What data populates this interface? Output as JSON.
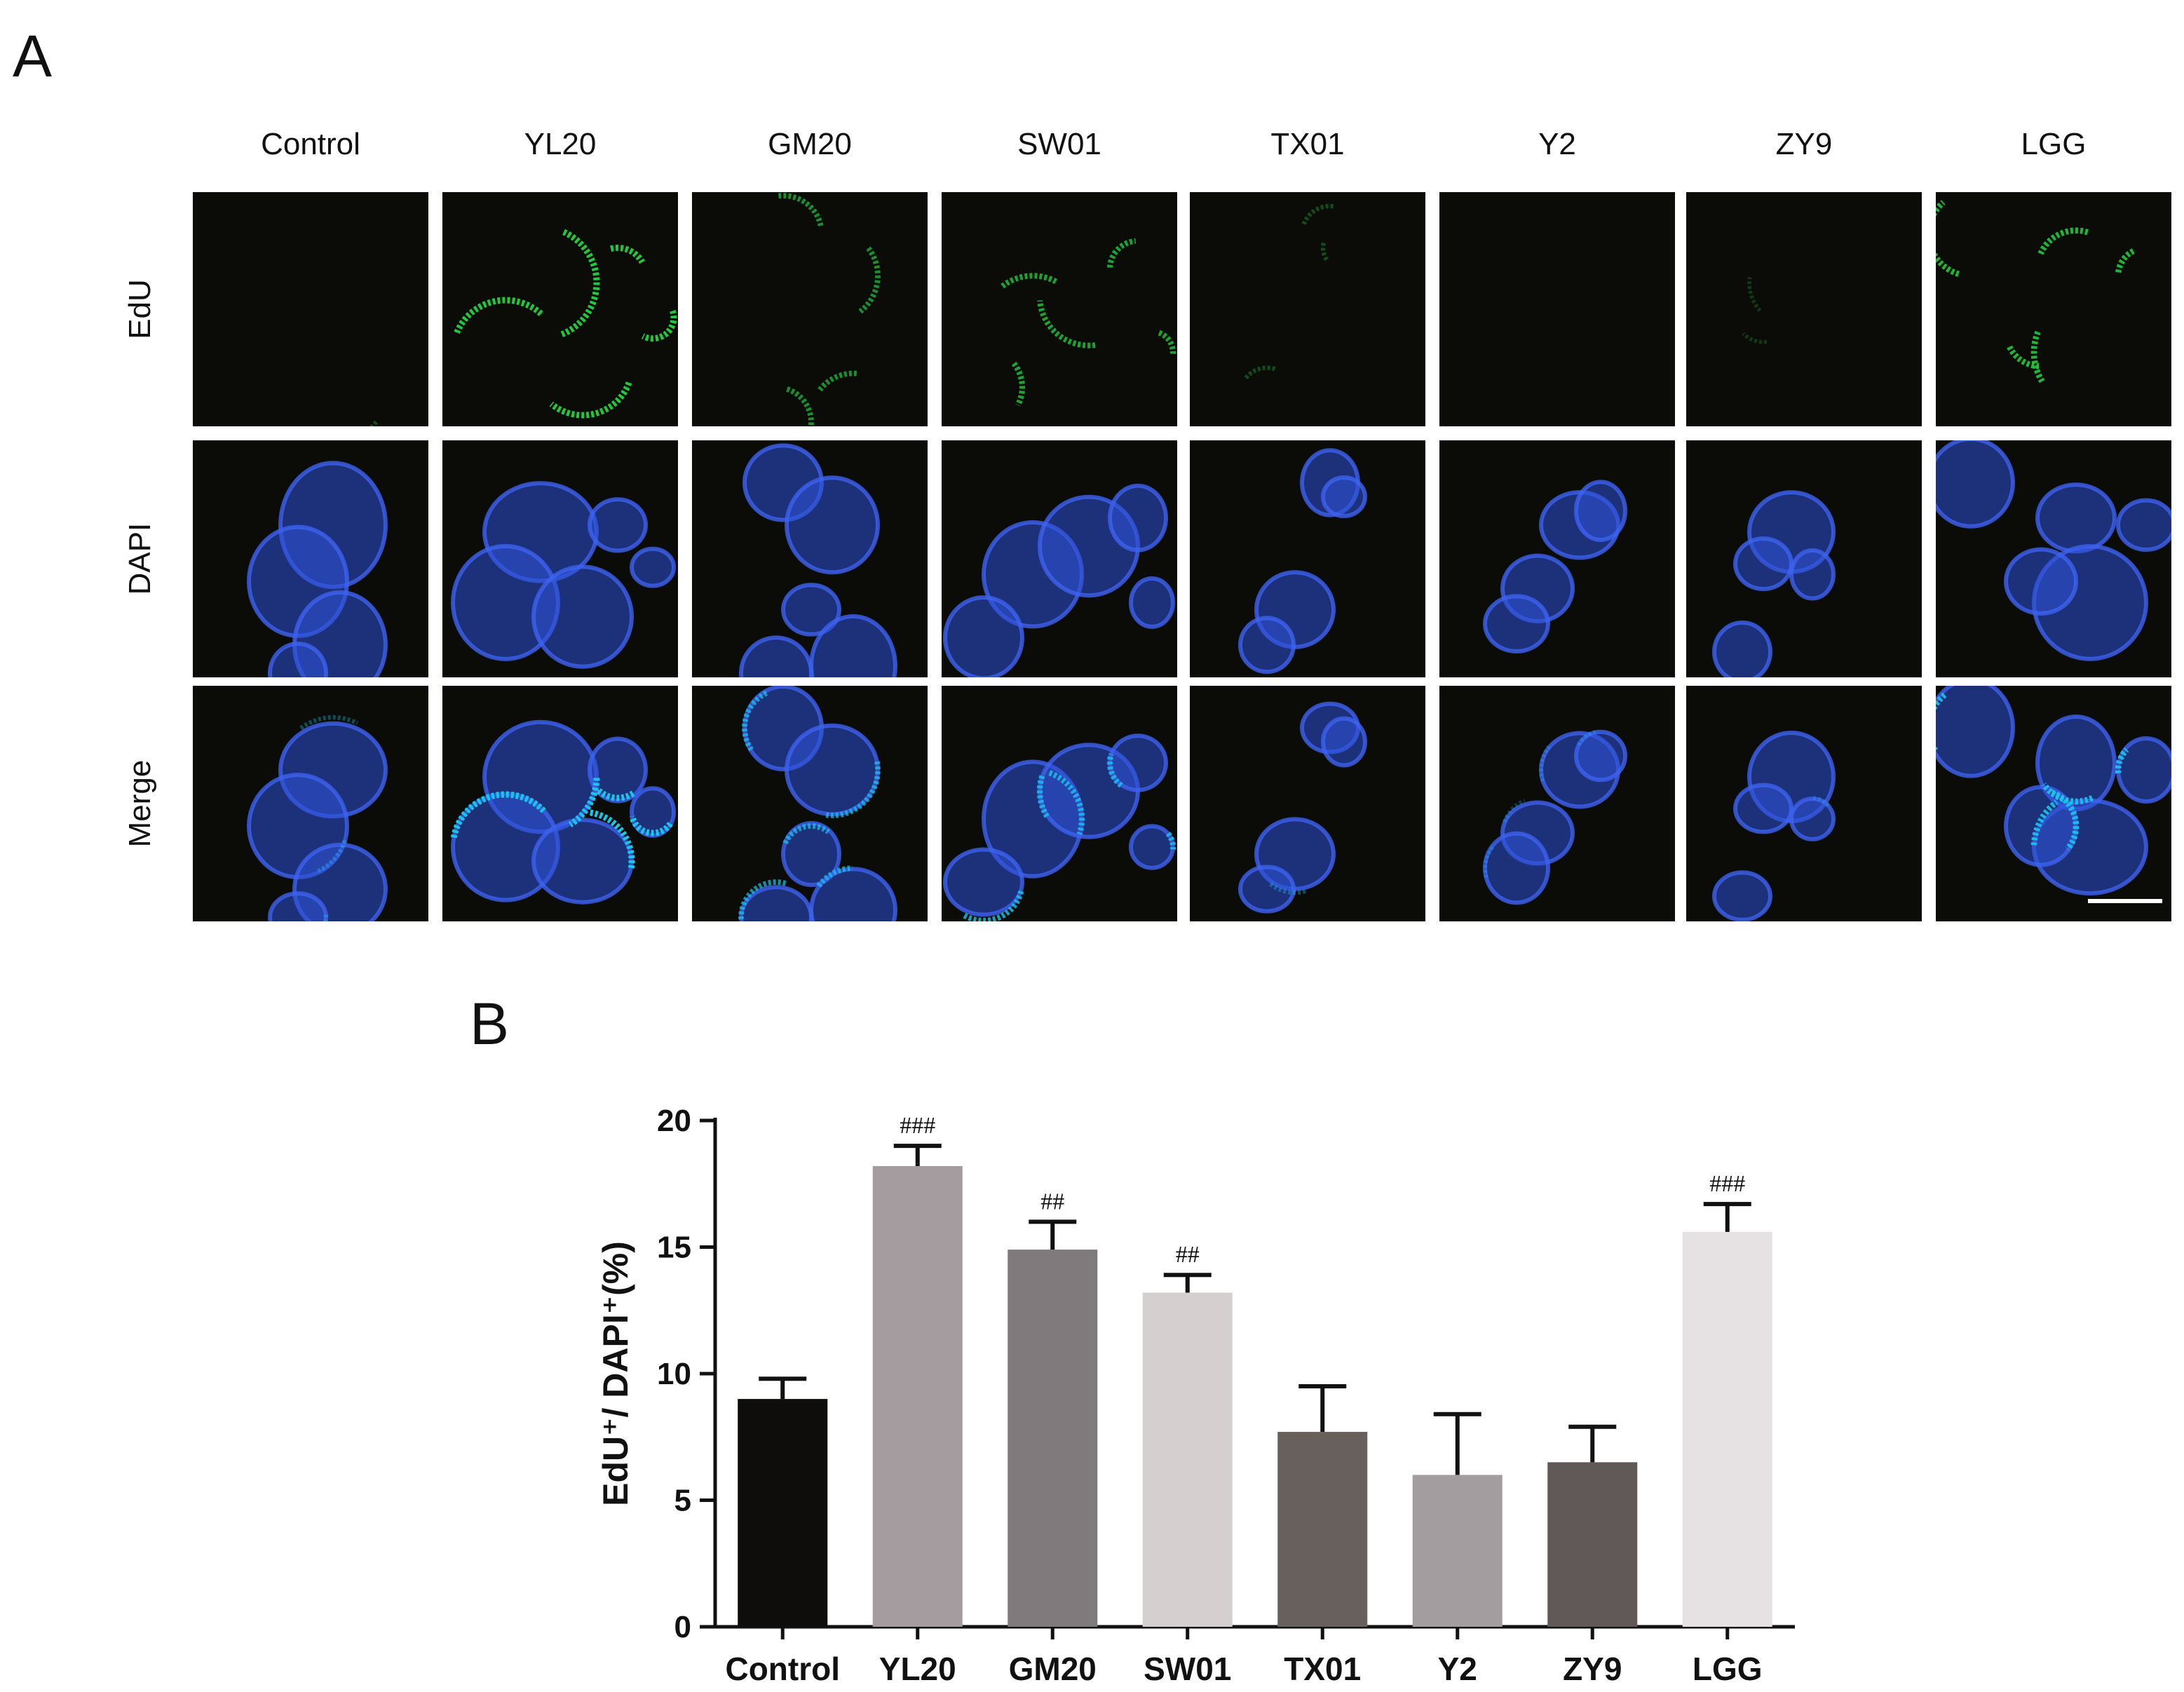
{
  "panel_a": {
    "letter": "A",
    "columns": [
      "Control",
      "YL20",
      "GM20",
      "SW01",
      "TX01",
      "Y2",
      "ZY9",
      "LGG"
    ],
    "rows": [
      "EdU",
      "DAPI",
      "Merge"
    ],
    "colors": {
      "edu_stain": "#22c83a",
      "dapi_stain": "#2e52d8",
      "merge_highlight": "#19c6e8",
      "background": "#0b0b08",
      "scale_bar": "#ffffff"
    }
  },
  "panel_b": {
    "letter": "B",
    "chart_data": {
      "type": "bar",
      "categories": [
        "Control",
        "YL20",
        "GM20",
        "SW01",
        "TX01",
        "Y2",
        "ZY9",
        "LGG"
      ],
      "values": [
        9.0,
        18.2,
        14.9,
        13.2,
        7.7,
        6.0,
        6.5,
        15.6
      ],
      "error_upper": [
        0.8,
        0.8,
        1.1,
        0.7,
        1.8,
        2.4,
        1.4,
        1.1
      ],
      "significance": [
        "",
        "###",
        "##",
        "##",
        "",
        "",
        "",
        "###"
      ],
      "bar_colors": [
        "#0e0d0b",
        "#a49c9e",
        "#817a7c",
        "#d6cfcf",
        "#67605d",
        "#a49d9f",
        "#605958",
        "#e6e1e3"
      ],
      "ylabel": "EdU⁺/ DAPI⁺(%)",
      "xlabel": "",
      "ylim": [
        0,
        20
      ],
      "yticks": [
        0,
        5,
        10,
        15,
        20
      ],
      "grid": false
    }
  }
}
